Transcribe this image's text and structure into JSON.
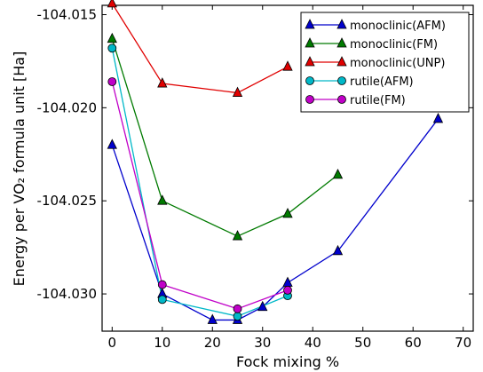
{
  "chart_data": {
    "type": "line",
    "title": "",
    "xlabel": "Fock mixing %",
    "ylabel": "Energy per VO₂ formula unit [Ha]",
    "xlim": [
      -2,
      72
    ],
    "ylim": [
      -104.032,
      -104.0145
    ],
    "x_ticks": [
      0,
      10,
      20,
      30,
      40,
      50,
      60,
      70
    ],
    "x_tick_labels": [
      "0",
      "10",
      "20",
      "30",
      "40",
      "50",
      "60",
      "70"
    ],
    "y_ticks": [
      -104.015,
      -104.02,
      -104.025,
      -104.03
    ],
    "y_tick_labels": [
      "-104.015",
      "-104.020",
      "-104.025",
      "-104.030"
    ],
    "grid": false,
    "legend_position": "top-right",
    "series": [
      {
        "name": "monoclinic(AFM)",
        "marker": "triangle",
        "color": "#0000cc",
        "x": [
          0,
          10,
          20,
          25,
          30,
          35,
          45,
          65
        ],
        "y": [
          -104.022,
          -104.03,
          -104.0314,
          -104.0314,
          -104.0307,
          -104.0294,
          -104.0277,
          -104.0206
        ]
      },
      {
        "name": "monoclinic(FM)",
        "marker": "triangle",
        "color": "#007a00",
        "x": [
          0,
          10,
          25,
          35,
          45
        ],
        "y": [
          -104.0163,
          -104.025,
          -104.0269,
          -104.0257,
          -104.0236
        ]
      },
      {
        "name": "monoclinic(UNP)",
        "marker": "triangle",
        "color": "#e00000",
        "x": [
          0,
          10,
          25,
          35
        ],
        "y": [
          -104.0144,
          -104.0187,
          -104.0192,
          -104.0178
        ]
      },
      {
        "name": "rutile(AFM)",
        "marker": "circle",
        "color": "#00b8c8",
        "x": [
          0,
          10,
          25,
          35
        ],
        "y": [
          -104.0168,
          -104.0303,
          -104.0312,
          -104.0301
        ]
      },
      {
        "name": "rutile(FM)",
        "marker": "circle",
        "color": "#c000c8",
        "x": [
          0,
          10,
          25,
          35
        ],
        "y": [
          -104.0186,
          -104.0295,
          -104.0308,
          -104.0298
        ]
      }
    ]
  }
}
